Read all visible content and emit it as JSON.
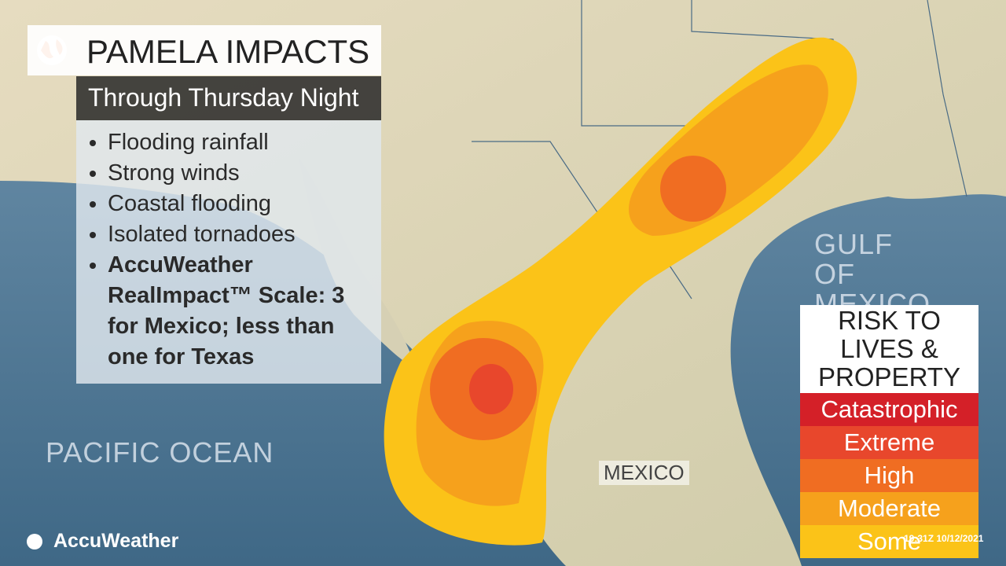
{
  "header": {
    "title": "PAMELA IMPACTS",
    "subtitle": "Through Thursday Night"
  },
  "bullets": [
    "Flooding rainfall",
    "Strong winds",
    "Coastal flooding",
    "Isolated tornadoes",
    "AccuWeather RealImpact™ Scale: 3 for Mexico; less than one for Texas"
  ],
  "map_labels": {
    "gulf": "GULF OF MEXICO",
    "pacific": "PACIFIC OCEAN",
    "country": "MEXICO"
  },
  "legend": {
    "title": "RISK TO LIVES & PROPERTY",
    "levels": [
      {
        "label": "Catastrophic",
        "color": "#d42028"
      },
      {
        "label": "Extreme",
        "color": "#e8472c"
      },
      {
        "label": "High",
        "color": "#f06d22"
      },
      {
        "label": "Moderate",
        "color": "#f6a11c"
      },
      {
        "label": "Some",
        "color": "#fbc318"
      }
    ]
  },
  "brand": "AccuWeather",
  "timestamp": "19:31Z 10/12/2021"
}
